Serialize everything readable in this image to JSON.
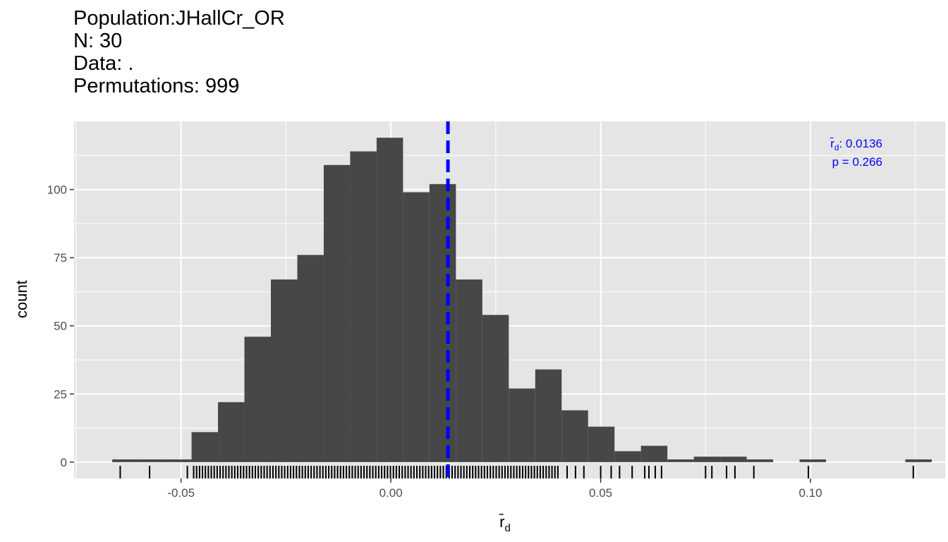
{
  "title_lines": [
    "Population:JHallCr_OR",
    "N: 30",
    "Data: .",
    "Permutations: 999"
  ],
  "colors": {
    "bar": "#474747",
    "panel": "#e5e5e5",
    "grid": "#ffffff",
    "observed_line": "#0000ff",
    "rug": "#000000"
  },
  "chart_data": {
    "type": "bar",
    "subtype": "histogram",
    "xlabel": "r̄",
    "xlabel_subscript": "d",
    "ylabel": "count",
    "xlim": [
      -0.0755,
      0.1321
    ],
    "ylim": [
      -6,
      125
    ],
    "x_ticks": [
      -0.05,
      0.0,
      0.05,
      0.1
    ],
    "x_tick_labels": [
      "-0.05",
      "0.00",
      "0.05",
      "0.10"
    ],
    "y_ticks": [
      0,
      25,
      50,
      75,
      100
    ],
    "y_tick_labels": [
      "0",
      "25",
      "50",
      "75",
      "100"
    ],
    "bin_width": 0.0063,
    "bins": [
      {
        "x0": -0.0664,
        "count": 1
      },
      {
        "x0": -0.0601,
        "count": 1
      },
      {
        "x0": -0.0538,
        "count": 1
      },
      {
        "x0": -0.0475,
        "count": 11
      },
      {
        "x0": -0.0412,
        "count": 22
      },
      {
        "x0": -0.0349,
        "count": 46
      },
      {
        "x0": -0.0286,
        "count": 67
      },
      {
        "x0": -0.0223,
        "count": 76
      },
      {
        "x0": -0.016,
        "count": 109
      },
      {
        "x0": -0.0097,
        "count": 114
      },
      {
        "x0": -0.0034,
        "count": 119
      },
      {
        "x0": 0.0029,
        "count": 99
      },
      {
        "x0": 0.0092,
        "count": 102
      },
      {
        "x0": 0.0155,
        "count": 67
      },
      {
        "x0": 0.0218,
        "count": 54
      },
      {
        "x0": 0.0281,
        "count": 27
      },
      {
        "x0": 0.0344,
        "count": 34
      },
      {
        "x0": 0.0407,
        "count": 19
      },
      {
        "x0": 0.047,
        "count": 13
      },
      {
        "x0": 0.0533,
        "count": 4
      },
      {
        "x0": 0.0596,
        "count": 6
      },
      {
        "x0": 0.0659,
        "count": 1
      },
      {
        "x0": 0.0722,
        "count": 2
      },
      {
        "x0": 0.0785,
        "count": 2
      },
      {
        "x0": 0.0848,
        "count": 1
      },
      {
        "x0": 0.0911,
        "count": 0
      },
      {
        "x0": 0.0974,
        "count": 1
      },
      {
        "x0": 0.1037,
        "count": 0
      },
      {
        "x0": 0.11,
        "count": 0
      },
      {
        "x0": 0.1163,
        "count": 0
      },
      {
        "x0": 0.1226,
        "count": 1
      }
    ],
    "observed": 0.0136,
    "p_value": 0.266,
    "annotation_line1_value": ": 0.0136",
    "annotation_line2": "p = 0.266",
    "rug_sparse": [
      -0.0645,
      -0.0575,
      -0.0485,
      0.0575,
      0.0605,
      0.0615,
      0.063,
      0.0645,
      0.075,
      0.0765,
      0.08,
      0.082,
      0.0865,
      0.0995,
      0.1245,
      0.05,
      0.0525,
      0.0545,
      0.046,
      0.044,
      0.042
    ],
    "rug_dense_range": [
      -0.047,
      0.04
    ]
  }
}
